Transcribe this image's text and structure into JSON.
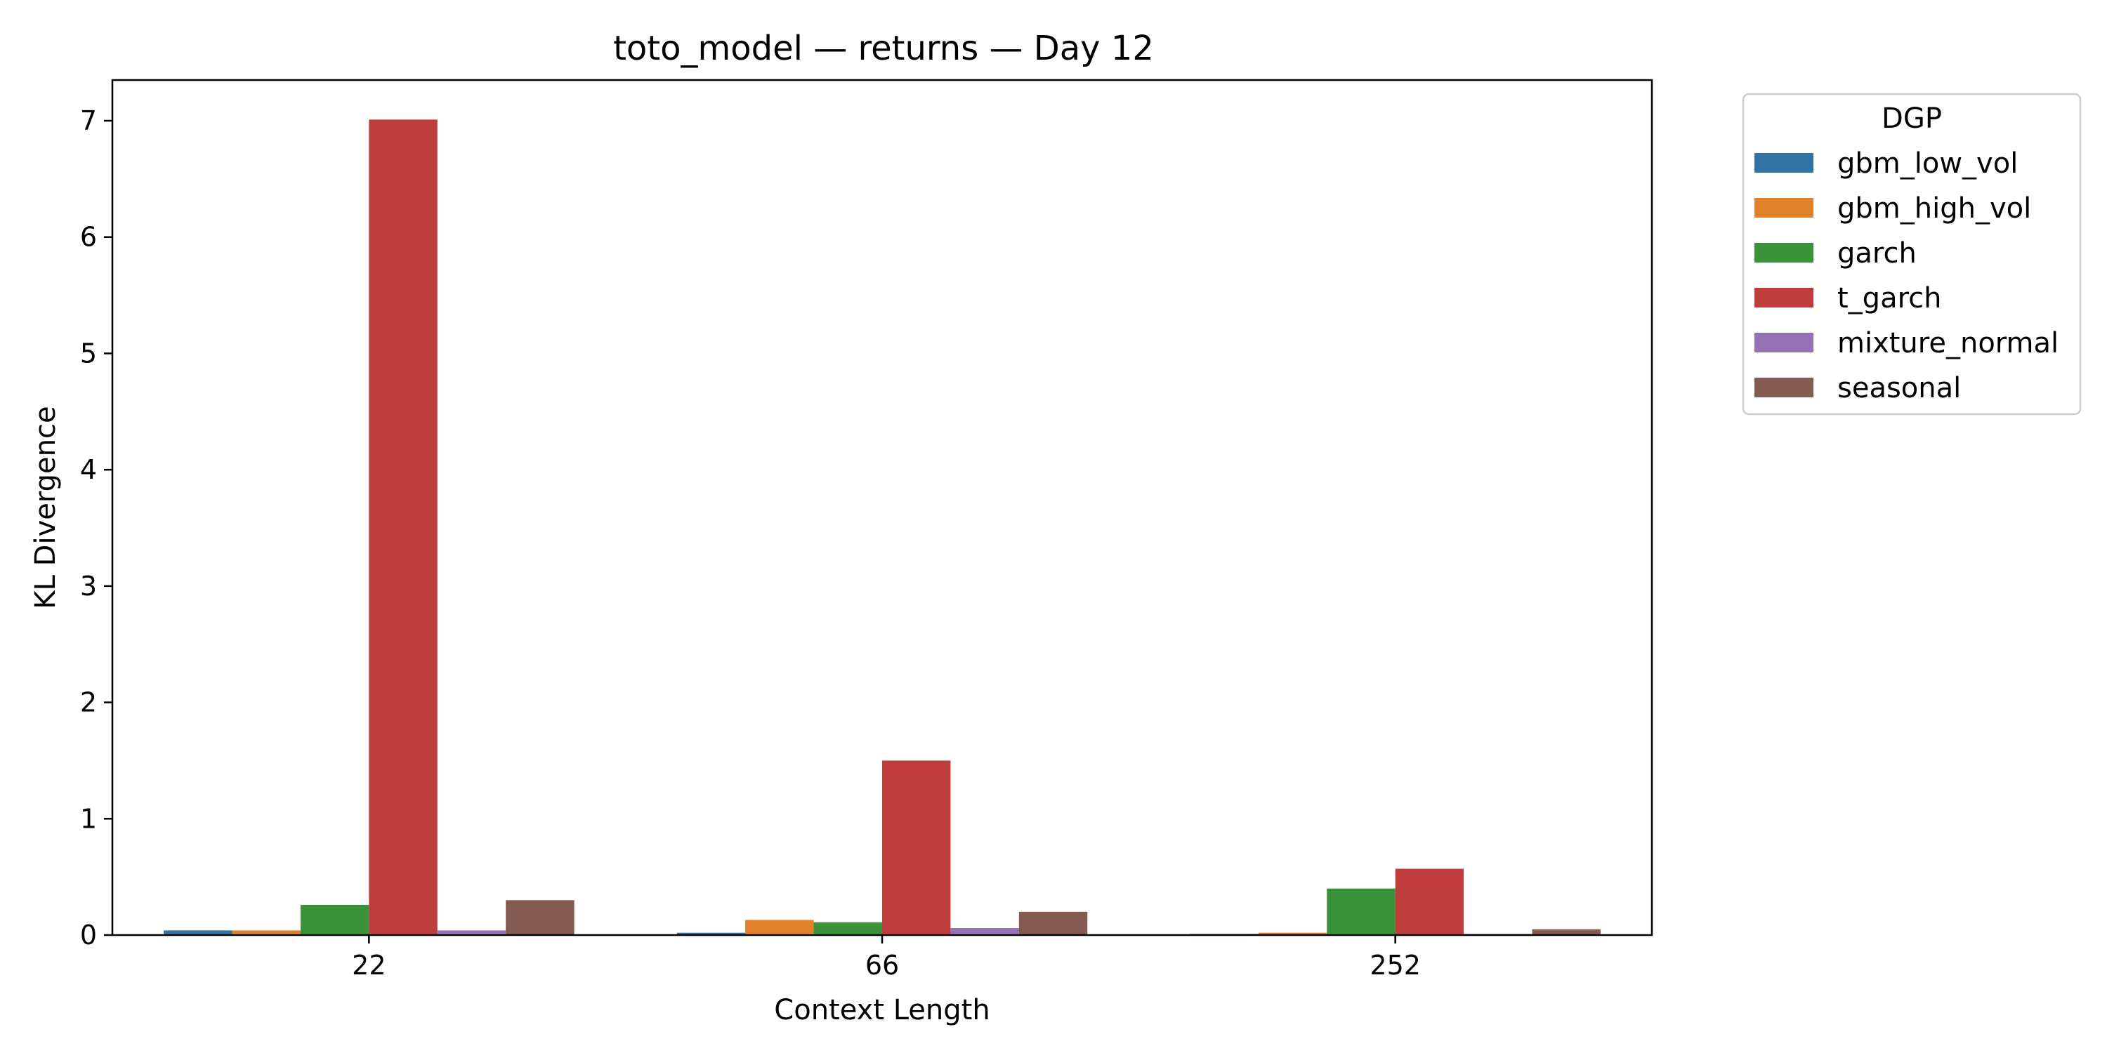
{
  "chart_data": {
    "type": "bar",
    "title": "toto_model — returns — Day 12",
    "xlabel": "Context Length",
    "ylabel": "KL Divergence",
    "categories": [
      "22",
      "66",
      "252"
    ],
    "ylim": [
      0,
      7.35
    ],
    "yticks": [
      0,
      1,
      2,
      3,
      4,
      5,
      6,
      7
    ],
    "grid": false,
    "legend": {
      "title": "DGP",
      "placement": "outside-top-right"
    },
    "series": [
      {
        "name": "gbm_low_vol",
        "color": "#3274a1",
        "values": [
          0.04,
          0.02,
          0.01
        ]
      },
      {
        "name": "gbm_high_vol",
        "color": "#e1812c",
        "values": [
          0.04,
          0.13,
          0.02
        ]
      },
      {
        "name": "garch",
        "color": "#3a923a",
        "values": [
          0.26,
          0.11,
          0.4
        ]
      },
      {
        "name": "t_garch",
        "color": "#c03d3e",
        "values": [
          7.01,
          1.5,
          0.57
        ]
      },
      {
        "name": "mixture_normal",
        "color": "#9372b2",
        "values": [
          0.04,
          0.06,
          0.01
        ]
      },
      {
        "name": "seasonal",
        "color": "#845b53",
        "values": [
          0.3,
          0.2,
          0.05
        ]
      }
    ]
  }
}
